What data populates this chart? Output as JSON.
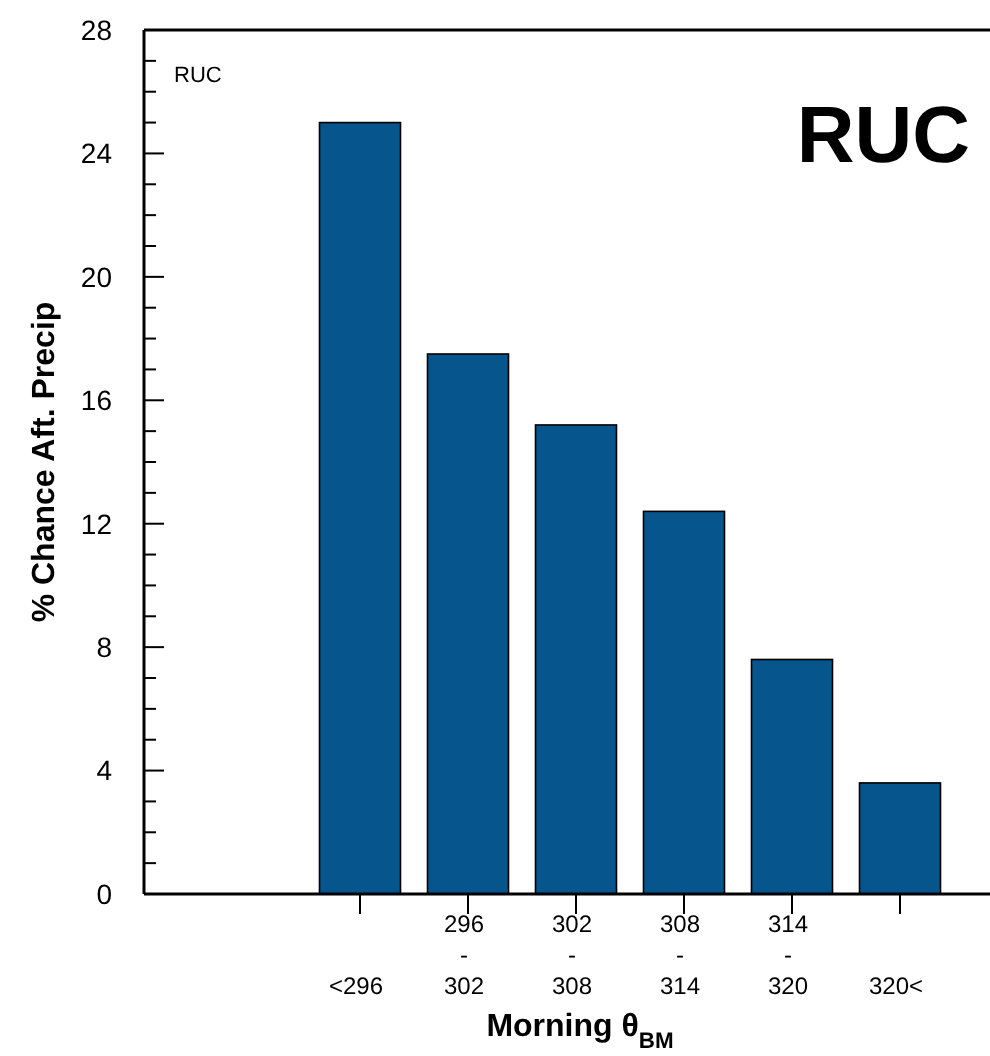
{
  "chart_data": {
    "type": "bar",
    "title": "RUC",
    "xlabel": "Morning θ$_{BM}$",
    "ylabel": "% Chance Aft. Precip",
    "annotations": [
      "RUC"
    ],
    "categories": [
      null,
      "<296",
      "296\n-\n302",
      "302\n-\n308",
      "308\n-\n314",
      "314\n-\n320",
      "320<"
    ],
    "values": [
      null,
      25,
      17.5,
      15.2,
      12.4,
      7.6,
      3.6
    ],
    "color": "#06558c",
    "ylim": [
      0,
      28
    ],
    "yticks": [
      0,
      {
        "value": 1,
        "label": null
      },
      {
        "value": 2,
        "label": null
      },
      {
        "value": 3,
        "label": null
      },
      4,
      {
        "value": 5,
        "label": null
      },
      {
        "value": 6,
        "label": null
      },
      {
        "value": 7,
        "label": null
      },
      8,
      {
        "value": 9,
        "label": null
      },
      {
        "value": 10,
        "label": null
      },
      {
        "value": 11,
        "label": null
      },
      12,
      {
        "value": 13,
        "label": null
      },
      {
        "value": 14,
        "label": null
      },
      {
        "value": 15,
        "label": null
      },
      16,
      {
        "value": 17,
        "label": null
      },
      {
        "value": 18,
        "label": null
      },
      {
        "value": 19,
        "label": null
      },
      20,
      {
        "value": 21,
        "label": null
      },
      {
        "value": 22,
        "label": null
      },
      {
        "value": 23,
        "label": null
      },
      24,
      {
        "value": 25,
        "label": null
      },
      {
        "value": 26,
        "label": null
      },
      {
        "value": 27,
        "label": null
      },
      28
    ]
  }
}
